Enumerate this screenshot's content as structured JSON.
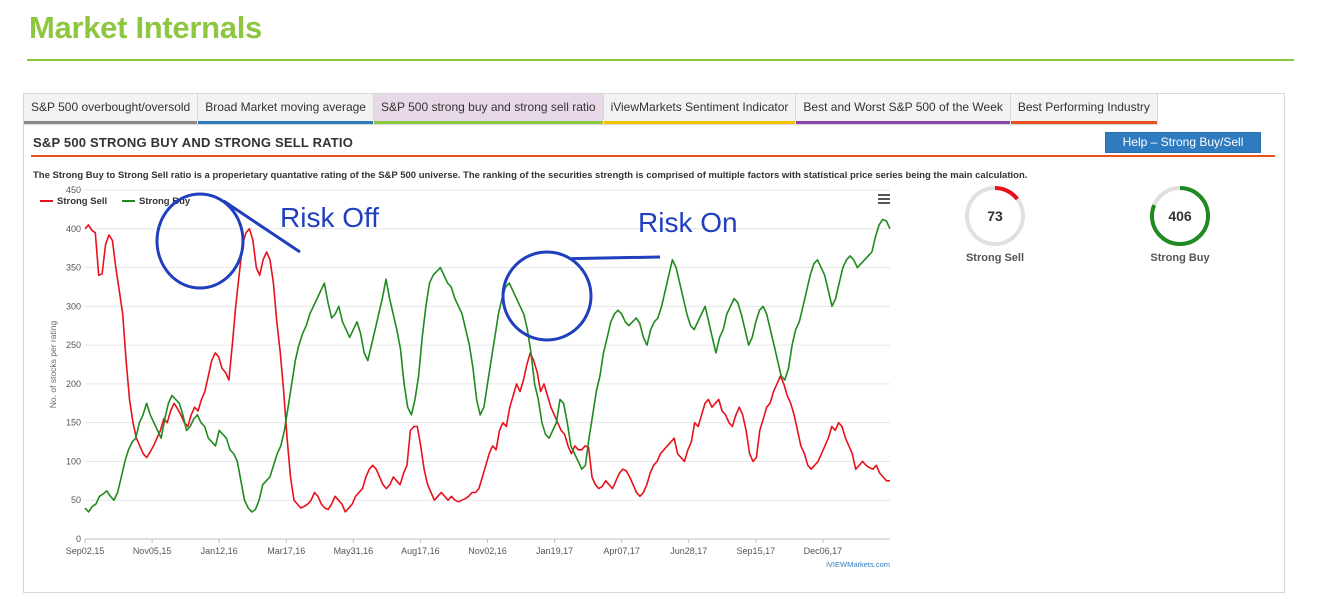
{
  "page": {
    "title": "Market Internals"
  },
  "tabs": [
    {
      "label": "S&P 500 overbought/oversold",
      "color": "#8a8a8a",
      "active": false
    },
    {
      "label": "Broad Market moving average",
      "color": "#2f7bbf",
      "active": false
    },
    {
      "label": "S&P 500 strong buy and strong sell ratio",
      "color": "#8dc63f",
      "active": true
    },
    {
      "label": "iViewMarkets Sentiment Indicator",
      "color": "#f2c200",
      "active": false
    },
    {
      "label": "Best and Worst S&P 500 of the Week",
      "color": "#8e44ad",
      "active": false
    },
    {
      "label": "Best Performing Industry",
      "color": "#e8501e",
      "active": false
    }
  ],
  "section": {
    "title": "S&P 500 STRONG BUY AND STRONG SELL RATIO",
    "help_label": "Help – Strong Buy/Sell",
    "description": "The Strong Buy to Strong Sell ratio is a properietary quantative rating of the S&P 500 universe. The ranking of the securities strength is comprised of multiple factors with statistical price series being the main calculation."
  },
  "chart_data": {
    "type": "line",
    "ylabel": "No. of stocks per rating",
    "ylim": [
      0,
      450
    ],
    "yticks": [
      0,
      50,
      100,
      150,
      200,
      250,
      300,
      350,
      400,
      450
    ],
    "xtick_labels": [
      "Sep02,15",
      "Nov05,15",
      "Jan12,16",
      "Mar17,16",
      "May31,16",
      "Aug17,16",
      "Nov02,16",
      "Jan19,17",
      "Apr07,17",
      "Jun28,17",
      "Sep15,17",
      "Dec06,17"
    ],
    "legend_position": "top-left",
    "credit": "iVIEWMarkets.com",
    "series": [
      {
        "name": "Strong Sell",
        "color": "#e8111b",
        "values": [
          400,
          405,
          398,
          395,
          340,
          342,
          380,
          392,
          385,
          350,
          320,
          290,
          230,
          180,
          150,
          130,
          120,
          110,
          105,
          112,
          120,
          130,
          140,
          155,
          150,
          165,
          175,
          168,
          160,
          150,
          145,
          160,
          170,
          165,
          180,
          190,
          210,
          230,
          240,
          235,
          220,
          215,
          205,
          250,
          300,
          340,
          380,
          395,
          400,
          385,
          350,
          340,
          360,
          370,
          360,
          330,
          280,
          240,
          190,
          130,
          80,
          50,
          45,
          40,
          42,
          45,
          50,
          60,
          55,
          45,
          40,
          38,
          45,
          55,
          50,
          45,
          35,
          40,
          45,
          55,
          60,
          65,
          80,
          90,
          95,
          90,
          80,
          70,
          65,
          70,
          80,
          75,
          70,
          85,
          95,
          140,
          145,
          145,
          120,
          90,
          70,
          60,
          50,
          55,
          60,
          55,
          50,
          55,
          50,
          48,
          50,
          52,
          55,
          60,
          60,
          65,
          80,
          95,
          110,
          120,
          115,
          140,
          150,
          145,
          170,
          185,
          200,
          190,
          205,
          225,
          240,
          230,
          215,
          190,
          200,
          185,
          170,
          160,
          150,
          140,
          135,
          120,
          110,
          120,
          115,
          115,
          120,
          118,
          80,
          70,
          65,
          68,
          75,
          70,
          65,
          75,
          85,
          90,
          88,
          80,
          70,
          60,
          55,
          60,
          70,
          85,
          95,
          100,
          110,
          115,
          120,
          125,
          130,
          110,
          105,
          100,
          115,
          125,
          150,
          145,
          160,
          175,
          180,
          170,
          175,
          180,
          165,
          160,
          150,
          145,
          160,
          170,
          160,
          140,
          110,
          100,
          105,
          140,
          155,
          170,
          175,
          190,
          200,
          210,
          200,
          185,
          175,
          160,
          140,
          120,
          110,
          95,
          90,
          95,
          100,
          110,
          120,
          130,
          145,
          140,
          150,
          145,
          130,
          120,
          110,
          90,
          95,
          100,
          95,
          92,
          90,
          95,
          85,
          80,
          75,
          75
        ]
      },
      {
        "name": "Strong Buy",
        "color": "#1f8a1f",
        "values": [
          40,
          35,
          42,
          45,
          55,
          58,
          62,
          55,
          50,
          60,
          80,
          100,
          115,
          125,
          130,
          150,
          160,
          175,
          160,
          150,
          140,
          130,
          155,
          175,
          185,
          180,
          175,
          160,
          140,
          145,
          155,
          160,
          150,
          145,
          130,
          125,
          120,
          140,
          135,
          130,
          115,
          110,
          100,
          75,
          50,
          40,
          35,
          38,
          50,
          70,
          75,
          80,
          95,
          110,
          120,
          140,
          170,
          200,
          230,
          250,
          265,
          275,
          290,
          300,
          310,
          320,
          330,
          305,
          285,
          290,
          300,
          280,
          270,
          260,
          270,
          280,
          265,
          240,
          230,
          250,
          270,
          290,
          310,
          335,
          310,
          290,
          270,
          245,
          200,
          170,
          160,
          180,
          210,
          260,
          300,
          330,
          340,
          345,
          350,
          340,
          330,
          325,
          310,
          300,
          290,
          270,
          250,
          220,
          180,
          160,
          170,
          200,
          230,
          260,
          290,
          310,
          325,
          330,
          320,
          310,
          300,
          290,
          270,
          240,
          200,
          180,
          150,
          135,
          130,
          140,
          150,
          180,
          175,
          150,
          120,
          110,
          100,
          90,
          95,
          130,
          160,
          190,
          210,
          240,
          260,
          280,
          290,
          295,
          290,
          280,
          275,
          280,
          285,
          278,
          260,
          250,
          270,
          280,
          285,
          300,
          320,
          340,
          360,
          350,
          330,
          310,
          290,
          275,
          270,
          280,
          290,
          300,
          280,
          260,
          240,
          260,
          270,
          290,
          300,
          310,
          305,
          290,
          270,
          250,
          260,
          280,
          295,
          300,
          290,
          270,
          250,
          230,
          210,
          205,
          220,
          250,
          270,
          280,
          300,
          320,
          340,
          355,
          360,
          350,
          340,
          320,
          300,
          310,
          330,
          350,
          360,
          365,
          360,
          350,
          355,
          360,
          365,
          370,
          390,
          405,
          412,
          410,
          400
        ]
      }
    ],
    "annotations": [
      {
        "text": "Risk Off",
        "color": "#1f3fbf",
        "circle_center": [
          101,
          148
        ],
        "circle_radius": [
          45,
          55
        ],
        "arrow_to": [
          151,
          230
        ]
      },
      {
        "text": "Risk On",
        "color": "#1f3fbf",
        "circle_center": [
          350,
          171
        ],
        "circle_radius": [
          45,
          55
        ],
        "arrow_to": [
          447,
          260
        ]
      }
    ]
  },
  "gauges": [
    {
      "label": "Strong Sell",
      "value": "73",
      "fraction": 0.146,
      "color": "#e8111b"
    },
    {
      "label": "Strong Buy",
      "value": "406",
      "fraction": 0.812,
      "color": "#1f8a1f"
    }
  ]
}
